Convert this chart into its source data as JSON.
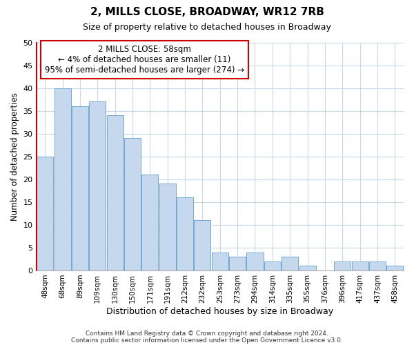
{
  "title": "2, MILLS CLOSE, BROADWAY, WR12 7RB",
  "subtitle": "Size of property relative to detached houses in Broadway",
  "xlabel": "Distribution of detached houses by size in Broadway",
  "ylabel": "Number of detached properties",
  "bar_labels": [
    "48sqm",
    "68sqm",
    "89sqm",
    "109sqm",
    "130sqm",
    "150sqm",
    "171sqm",
    "191sqm",
    "212sqm",
    "232sqm",
    "253sqm",
    "273sqm",
    "294sqm",
    "314sqm",
    "335sqm",
    "355sqm",
    "376sqm",
    "396sqm",
    "417sqm",
    "437sqm",
    "458sqm"
  ],
  "bar_values": [
    25,
    40,
    36,
    37,
    34,
    29,
    21,
    19,
    16,
    11,
    4,
    3,
    4,
    2,
    3,
    1,
    0,
    2,
    2,
    2,
    1
  ],
  "bar_color": "#c5d8ed",
  "bar_edge_color": "#6fa8d0",
  "highlight_edge_color": "#cc0000",
  "ylim": [
    0,
    50
  ],
  "yticks": [
    0,
    5,
    10,
    15,
    20,
    25,
    30,
    35,
    40,
    45,
    50
  ],
  "annotation_title": "2 MILLS CLOSE: 58sqm",
  "annotation_line1": "← 4% of detached houses are smaller (11)",
  "annotation_line2": "95% of semi-detached houses are larger (274) →",
  "annotation_box_edge": "#cc0000",
  "footnote1": "Contains HM Land Registry data © Crown copyright and database right 2024.",
  "footnote2": "Contains public sector information licensed under the Open Government Licence v3.0.",
  "background_color": "#ffffff",
  "grid_color": "#c8d8e8"
}
